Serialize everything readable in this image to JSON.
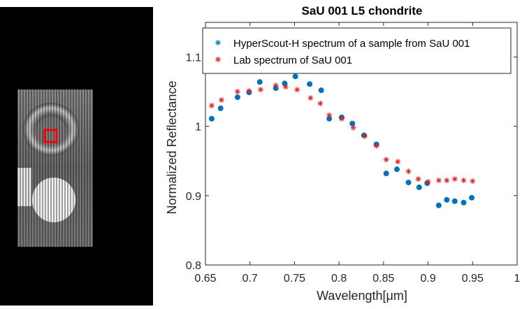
{
  "colors": {
    "hyperscout": "#0072BD",
    "lab": "#E02020",
    "axis": "#262626",
    "roi_box": "#FF0000"
  },
  "image_panel": {
    "description_icon": "sample-thumbnail-image",
    "roi_marker": "red-square"
  },
  "chart_data": {
    "type": "scatter",
    "title": "SaU 001 L5 chondrite",
    "xlabel": "Wavelength[μm]",
    "ylabel": "Normalized Reflectance",
    "xlim": [
      0.65,
      1.0
    ],
    "ylim": [
      0.8,
      1.15
    ],
    "xticks": [
      0.65,
      0.7,
      0.75,
      0.8,
      0.85,
      0.9,
      0.95,
      1
    ],
    "xtick_labels": [
      "0.65",
      "0.7",
      "0.75",
      "0.8",
      "0.85",
      "0.9",
      "0.95",
      "1"
    ],
    "yticks": [
      0.8,
      0.9,
      1.0,
      1.1
    ],
    "ytick_labels": [
      "0.8",
      "0.9",
      "1",
      "1.1"
    ],
    "legend_position": "top-right",
    "series": [
      {
        "name": "HyperScout-H spectrum of a sample from  SaU 001",
        "marker": "filled-circle",
        "x": [
          0.657,
          0.667,
          0.686,
          0.699,
          0.711,
          0.729,
          0.739,
          0.751,
          0.767,
          0.78,
          0.789,
          0.803,
          0.815,
          0.828,
          0.842,
          0.853,
          0.865,
          0.878,
          0.89,
          0.899,
          0.912,
          0.921,
          0.93,
          0.94,
          0.949
        ],
        "y": [
          1.011,
          1.026,
          1.042,
          1.049,
          1.064,
          1.055,
          1.062,
          1.072,
          1.061,
          1.052,
          1.011,
          1.013,
          1.004,
          0.987,
          0.974,
          0.932,
          0.938,
          0.919,
          0.912,
          0.918,
          0.886,
          0.894,
          0.892,
          0.89,
          0.897
        ]
      },
      {
        "name": "Lab spectrum of SaU 001",
        "marker": "asterisk",
        "x": [
          0.657,
          0.668,
          0.686,
          0.699,
          0.712,
          0.729,
          0.74,
          0.753,
          0.768,
          0.779,
          0.789,
          0.803,
          0.816,
          0.829,
          0.842,
          0.853,
          0.866,
          0.878,
          0.889,
          0.9,
          0.912,
          0.921,
          0.93,
          0.94,
          0.95
        ],
        "y": [
          1.03,
          1.038,
          1.05,
          1.051,
          1.053,
          1.059,
          1.057,
          1.053,
          1.041,
          1.033,
          1.016,
          1.011,
          0.998,
          0.986,
          0.972,
          0.952,
          0.949,
          0.935,
          0.924,
          0.92,
          0.922,
          0.922,
          0.924,
          0.922,
          0.921
        ]
      }
    ]
  }
}
